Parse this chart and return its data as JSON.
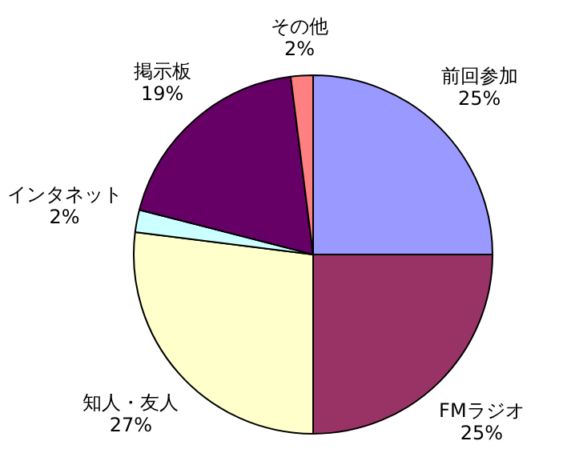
{
  "chart_data": {
    "type": "pie",
    "categories": [
      "前回参加",
      "FMラジオ",
      "知人・友人",
      "インタネット",
      "掲示板",
      "その他"
    ],
    "values": [
      25,
      25,
      27,
      2,
      19,
      2
    ],
    "colors": [
      "#9999ff",
      "#993366",
      "#ffffcc",
      "#ccffff",
      "#660066",
      "#ff8080"
    ],
    "value_labels": [
      "25%",
      "25%",
      "27%",
      "2%",
      "19%",
      "2%"
    ],
    "legend": false
  }
}
